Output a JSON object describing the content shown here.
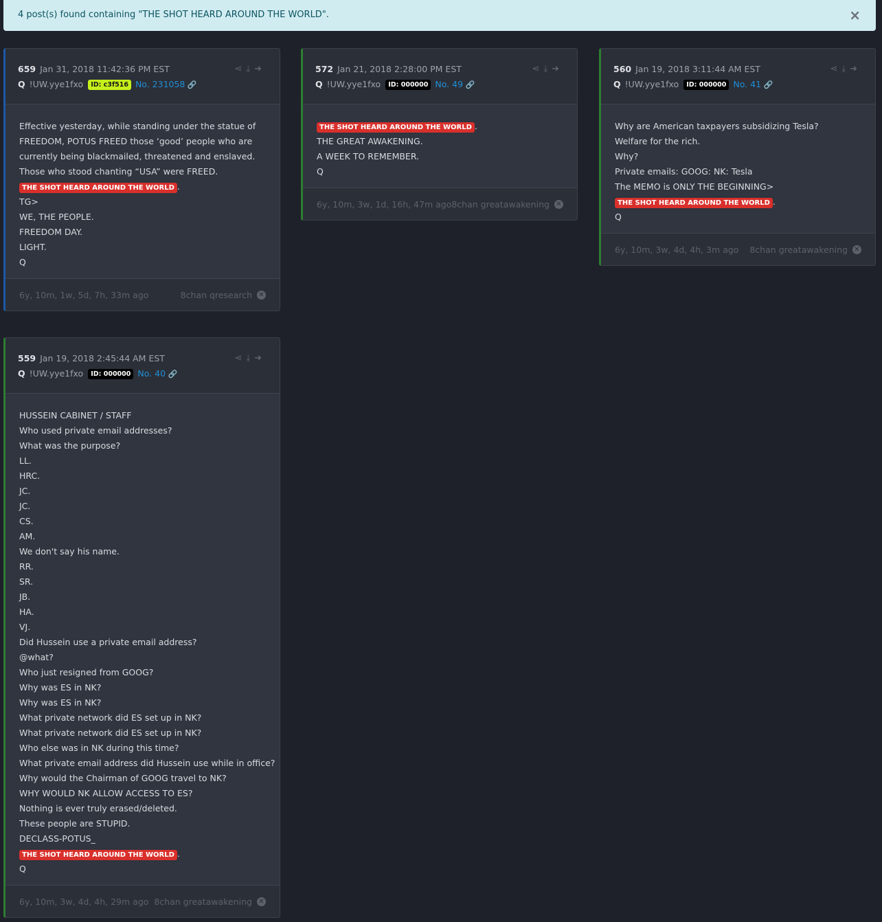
{
  "alert": {
    "message": "4 post(s) found containing \"THE SHOT HEARD AROUND THE WORLD\".",
    "close": "×"
  },
  "icons": {
    "share": "share-icon",
    "download": "download-icon",
    "open": "arrow-circle-right-icon",
    "link": "link-icon",
    "dismiss": "times-circle-icon"
  },
  "colors": {
    "accent_blue": "#1c5aa6",
    "accent_green": "#2e7d32",
    "highlight": "#d9302c",
    "link": "#1f8fd6"
  },
  "posts": [
    {
      "number": "659",
      "date": "Jan 31, 2018 11:42:36 PM EST",
      "author": "Q",
      "tripcode": "!UW.yye1fxo",
      "id": "ID: c3f516",
      "id_style": "lime",
      "post_no": "No. 231058",
      "border": "blue",
      "lines": [
        {
          "t": "Effective yesterday, while standing under the statue of"
        },
        {
          "t": "FREEDOM, POTUS FREED those ‘good’ people who are"
        },
        {
          "t": "currently being blackmailed, threatened and enslaved."
        },
        {
          "t": "Those who stood chanting “USA” were FREED."
        },
        {
          "h": "THE SHOT HEARD AROUND THE WORLD",
          "t": "."
        },
        {
          "t": "TG>"
        },
        {
          "t": "WE, THE PEOPLE."
        },
        {
          "t": "FREEDOM DAY."
        },
        {
          "t": "LIGHT."
        },
        {
          "t": "Q"
        }
      ],
      "ago": "6y, 10m, 1w, 5d, 7h, 33m ago",
      "source": "8chan qresearch"
    },
    {
      "number": "572",
      "date": "Jan 21, 2018 2:28:00 PM EST",
      "author": "Q",
      "tripcode": "!UW.yye1fxo",
      "id": "ID: 000000",
      "id_style": "black",
      "post_no": "No. 49",
      "border": "green",
      "lines": [
        {
          "h": "THE SHOT HEARD AROUND THE WORLD",
          "t": "."
        },
        {
          "t": "THE GREAT AWAKENING."
        },
        {
          "t": "A WEEK TO REMEMBER."
        },
        {
          "t": "Q"
        }
      ],
      "ago": "6y, 10m, 3w, 1d, 16h, 47m ago",
      "source": "8chan greatawakening"
    },
    {
      "number": "560",
      "date": "Jan 19, 2018 3:11:44 AM EST",
      "author": "Q",
      "tripcode": "!UW.yye1fxo",
      "id": "ID: 000000",
      "id_style": "black",
      "post_no": "No. 41",
      "border": "green",
      "lines": [
        {
          "t": "Why are American taxpayers subsidizing Tesla?"
        },
        {
          "t": "Welfare for the rich."
        },
        {
          "t": "Why?"
        },
        {
          "t": "Private emails: GOOG: NK: Tesla"
        },
        {
          "t": "The MEMO is ONLY THE BEGINNING>"
        },
        {
          "h": "THE SHOT HEARD AROUND THE WORLD",
          "t": "."
        },
        {
          "t": "Q"
        }
      ],
      "ago": "6y, 10m, 3w, 4d, 4h, 3m ago",
      "source": "8chan greatawakening"
    },
    {
      "number": "559",
      "date": "Jan 19, 2018 2:45:44 AM EST",
      "author": "Q",
      "tripcode": "!UW.yye1fxo",
      "id": "ID: 000000",
      "id_style": "black",
      "post_no": "No. 40",
      "border": "green",
      "lines": [
        {
          "t": "HUSSEIN CABINET / STAFF"
        },
        {
          "t": "Who used private email addresses?"
        },
        {
          "t": "What was the purpose?"
        },
        {
          "t": "LL."
        },
        {
          "t": "HRC."
        },
        {
          "t": "JC."
        },
        {
          "t": "JC."
        },
        {
          "t": "CS."
        },
        {
          "t": "AM."
        },
        {
          "t": "We don't say his name."
        },
        {
          "t": "RR."
        },
        {
          "t": "SR."
        },
        {
          "t": "JB."
        },
        {
          "t": "HA."
        },
        {
          "t": "VJ."
        },
        {
          "t": "Did Hussein use a private email address?"
        },
        {
          "t": "@what?"
        },
        {
          "t": "Who just resigned from GOOG?"
        },
        {
          "t": "Why was ES in NK?"
        },
        {
          "t": "Why was ES in NK?"
        },
        {
          "t": "What private network did ES set up in NK?"
        },
        {
          "t": "What private network did ES set up in NK?"
        },
        {
          "t": "Who else was in NK during this time?"
        },
        {
          "t": "What private email address did Hussein use while in office?"
        },
        {
          "t": "Why would the Chairman of GOOG travel to NK?"
        },
        {
          "t": "WHY WOULD NK ALLOW ACCESS TO ES?"
        },
        {
          "t": "Nothing is ever truly erased/deleted."
        },
        {
          "t": "These people are STUPID."
        },
        {
          "t": "DECLASS-POTUS_"
        },
        {
          "h": "THE SHOT HEARD AROUND THE WORLD",
          "t": "."
        },
        {
          "t": "Q"
        }
      ],
      "ago": "6y, 10m, 3w, 4d, 4h, 29m ago",
      "source": "8chan greatawakening"
    }
  ]
}
